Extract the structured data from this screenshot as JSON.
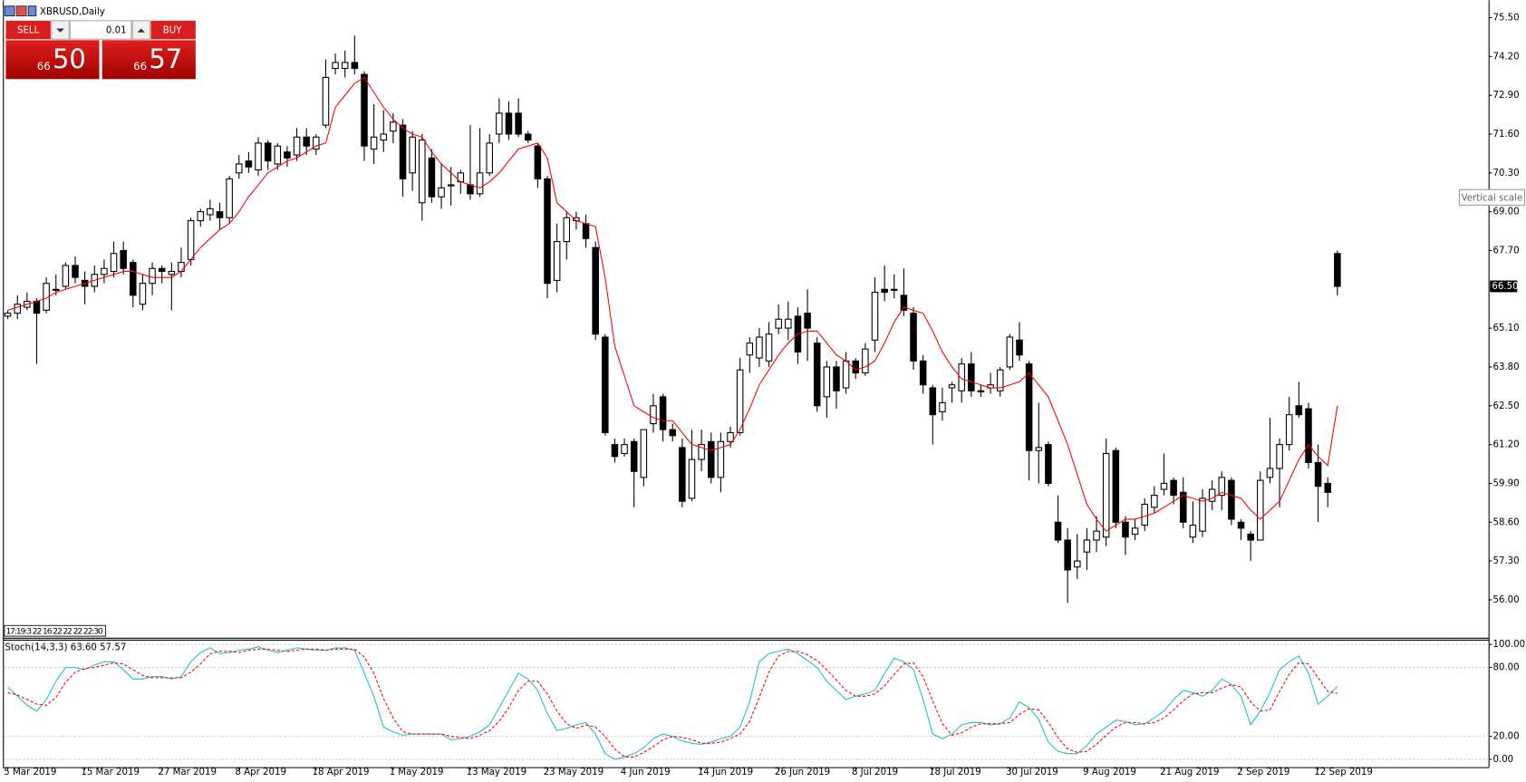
{
  "window": {
    "title": "XBRUSD,Daily",
    "trade_panel": {
      "sell": "SELL",
      "buy": "BUY",
      "volume": "0.01",
      "sell_price": {
        "prefix": "66",
        "main": "50"
      },
      "buy_price": {
        "prefix": "66",
        "main": "57"
      }
    },
    "tooltip": "Vertical scale",
    "time_strip": "17:19:3 22 16 22 22 22 22:30"
  },
  "chart_data": [
    {
      "type": "candlestick",
      "up_color": "#ffffff",
      "down_color": "#000000",
      "ylim": [
        54.73,
        75.92
      ],
      "yticks": [
        {
          "value": 75.5,
          "label": "75.50"
        },
        {
          "value": 74.2,
          "label": "74.20"
        },
        {
          "value": 72.9,
          "label": "72.90"
        },
        {
          "value": 71.6,
          "label": "71.60"
        },
        {
          "value": 70.3,
          "label": "70.30"
        },
        {
          "value": 69,
          "label": "69.00"
        },
        {
          "value": 67.7,
          "label": "67.70"
        },
        {
          "value": 65.1,
          "label": "65.10"
        },
        {
          "value": 63.8,
          "label": "63.80"
        },
        {
          "value": 62.5,
          "label": "62.50"
        },
        {
          "value": 61.2,
          "label": "61.20"
        },
        {
          "value": 59.9,
          "label": "59.90"
        },
        {
          "value": 58.6,
          "label": "58.60"
        },
        {
          "value": 57.3,
          "label": "57.30"
        },
        {
          "value": 56,
          "label": "56.00"
        }
      ],
      "last_price": {
        "value": 66.5,
        "label": "66.50"
      },
      "categories": [
        "5 Mar 2019",
        null,
        null,
        null,
        null,
        null,
        null,
        null,
        "15 Mar 2019",
        null,
        null,
        null,
        null,
        null,
        null,
        null,
        "27 Mar 2019",
        null,
        null,
        null,
        null,
        null,
        null,
        null,
        "8 Apr 2019",
        null,
        null,
        null,
        null,
        null,
        null,
        null,
        "18 Apr 2019",
        null,
        null,
        null,
        null,
        null,
        null,
        null,
        "1 May 2019",
        null,
        null,
        null,
        null,
        null,
        null,
        null,
        "13 May 2019",
        null,
        null,
        null,
        null,
        null,
        null,
        null,
        "23 May 2019",
        null,
        null,
        null,
        null,
        null,
        null,
        null,
        "4 Jun 2019",
        null,
        null,
        null,
        null,
        null,
        null,
        null,
        "14 Jun 2019",
        null,
        null,
        null,
        null,
        null,
        null,
        null,
        "26 Jun 2019",
        null,
        null,
        null,
        null,
        null,
        null,
        null,
        "8 Jul 2019",
        null,
        null,
        null,
        null,
        null,
        null,
        null,
        "18 Jul 2019",
        null,
        null,
        null,
        null,
        null,
        null,
        null,
        "30 Jul 2019",
        null,
        null,
        null,
        null,
        null,
        null,
        null,
        "9 Aug 2019",
        null,
        null,
        null,
        null,
        null,
        null,
        null,
        "21 Aug 2019",
        null,
        null,
        null,
        null,
        null,
        null,
        null,
        "2 Sep 2019",
        null,
        null,
        null,
        null,
        null,
        null,
        null,
        "12 Sep 2019",
        null,
        null
      ],
      "open": [
        65.5,
        65.6,
        65.8,
        66.0,
        65.7,
        66.4,
        66.5,
        67.2,
        66.7,
        66.5,
        66.9,
        67.0,
        67.7,
        67.3,
        65.9,
        66.6,
        67.1,
        66.9,
        67.0,
        67.4,
        68.7,
        68.9,
        69.0,
        68.8,
        70.3,
        70.7,
        70.4,
        71.3,
        70.6,
        71.0,
        70.9,
        71.5,
        71.1,
        71.9,
        73.8,
        73.8,
        74.0,
        73.6,
        71.1,
        71.4,
        71.7,
        71.9,
        70.3,
        69.3,
        70.8,
        69.5,
        69.9,
        70.0,
        69.9,
        69.6,
        70.3,
        71.6,
        72.3,
        72.3,
        71.6,
        71.2,
        70.1,
        66.7,
        68.0,
        68.7,
        68.6,
        67.8,
        64.8,
        61.2,
        60.9,
        61.3,
        60.1,
        61.9,
        62.8,
        61.7,
        61.1,
        59.4,
        60.7,
        61.3,
        60.1,
        61.3,
        61.6,
        64.2,
        64.1,
        64.0,
        65.1,
        65.1,
        65.5,
        65.6,
        64.6,
        62.8,
        63.8,
        63.1,
        64.0,
        63.6,
        64.7,
        66.4,
        66.4,
        66.2,
        65.6,
        64.0,
        63.1,
        62.3,
        63.1,
        63.0,
        63.9,
        63.0,
        63.1,
        63.0,
        63.8,
        64.7,
        63.9,
        61.0,
        61.2,
        58.6,
        58.0,
        57.1,
        57.6,
        58.0,
        58.1,
        61.0,
        58.6,
        58.2,
        58.5,
        59.1,
        59.7,
        60.0,
        59.6,
        58.1,
        58.3,
        59.3,
        59.5,
        60.0,
        58.6,
        58.2,
        58.0,
        60.1,
        60.4,
        61.2,
        62.5,
        62.4,
        60.6,
        59.9,
        67.6
      ],
      "high": [
        65.7,
        66.2,
        66.3,
        66.1,
        66.8,
        66.9,
        67.3,
        67.5,
        67.0,
        67.2,
        67.4,
        68.0,
        68.0,
        67.4,
        66.9,
        67.3,
        67.2,
        67.3,
        67.8,
        68.8,
        69.1,
        69.4,
        69.3,
        70.2,
        70.9,
        71.0,
        71.5,
        71.4,
        71.3,
        71.2,
        71.8,
        71.8,
        71.6,
        74.1,
        74.3,
        74.4,
        74.9,
        73.7,
        72.6,
        72.4,
        72.3,
        72.1,
        71.7,
        71.6,
        71.1,
        70.6,
        70.5,
        70.4,
        71.9,
        71.8,
        71.6,
        72.8,
        72.7,
        72.8,
        71.7,
        71.3,
        70.2,
        68.6,
        69.0,
        69.0,
        68.9,
        68.0,
        64.9,
        61.4,
        61.4,
        61.4,
        61.7,
        62.9,
        62.9,
        61.9,
        61.4,
        61.7,
        61.7,
        61.6,
        61.6,
        61.8,
        64.1,
        64.8,
        65.1,
        65.3,
        65.9,
        66.0,
        65.8,
        66.4,
        64.8,
        64.0,
        64.0,
        64.3,
        64.1,
        64.6,
        66.8,
        67.2,
        66.9,
        67.1,
        65.8,
        64.2,
        63.2,
        63.1,
        63.3,
        64.1,
        64.3,
        63.2,
        63.6,
        63.8,
        64.9,
        65.3,
        64.0,
        62.6,
        61.3,
        59.5,
        58.4,
        58.2,
        58.4,
        58.8,
        61.4,
        61.1,
        58.8,
        58.7,
        59.4,
        59.8,
        60.9,
        60.1,
        60.1,
        59.3,
        59.7,
        60.0,
        60.3,
        60.1,
        58.7,
        58.3,
        60.3,
        62.1,
        61.4,
        62.8,
        63.3,
        62.6,
        61.2,
        60.1,
        67.7
      ],
      "low": [
        65.4,
        65.4,
        65.7,
        63.9,
        65.6,
        66.2,
        66.4,
        66.6,
        65.9,
        66.3,
        66.6,
        66.8,
        66.9,
        65.8,
        65.7,
        66.2,
        66.6,
        65.7,
        66.8,
        67.2,
        68.5,
        68.7,
        68.4,
        68.6,
        70.1,
        70.3,
        70.2,
        70.4,
        70.4,
        70.5,
        70.7,
        70.9,
        70.9,
        71.8,
        73.6,
        73.5,
        73.6,
        70.7,
        70.6,
        71.0,
        71.3,
        69.5,
        69.7,
        68.7,
        69.3,
        69.1,
        69.2,
        69.6,
        69.4,
        69.5,
        70.2,
        71.3,
        71.4,
        71.5,
        71.3,
        69.8,
        66.1,
        66.3,
        67.4,
        68.4,
        67.8,
        64.7,
        61.5,
        60.6,
        60.8,
        59.1,
        59.8,
        61.6,
        61.3,
        61.3,
        59.1,
        59.3,
        60.3,
        59.9,
        59.6,
        61.1,
        61.5,
        63.6,
        63.8,
        63.8,
        64.9,
        64.7,
        63.9,
        64.0,
        62.3,
        62.1,
        62.4,
        62.9,
        63.4,
        63.5,
        64.3,
        66.0,
        66.1,
        65.5,
        63.7,
        62.9,
        61.2,
        62.0,
        62.6,
        62.6,
        62.8,
        62.8,
        62.9,
        62.8,
        63.7,
        64.0,
        60.0,
        59.9,
        59.8,
        57.9,
        55.9,
        56.7,
        57.0,
        57.6,
        57.8,
        58.4,
        57.5,
        58.0,
        58.3,
        58.9,
        59.5,
        59.2,
        58.4,
        57.9,
        58.1,
        59.0,
        59.0,
        58.5,
        58.0,
        57.3,
        58.0,
        59.9,
        59.1,
        61.0,
        62.1,
        60.4,
        58.6,
        59.1,
        66.2
      ],
      "close": [
        65.6,
        65.9,
        66.0,
        65.6,
        66.6,
        66.4,
        67.2,
        66.8,
        66.5,
        66.9,
        67.1,
        67.6,
        67.1,
        66.2,
        66.6,
        67.1,
        67.0,
        67.0,
        67.3,
        68.7,
        69.0,
        69.1,
        68.8,
        70.1,
        70.6,
        70.5,
        71.3,
        70.7,
        71.2,
        70.8,
        71.5,
        71.2,
        71.5,
        73.5,
        74.0,
        74.0,
        73.8,
        71.2,
        71.5,
        71.6,
        72.0,
        70.1,
        71.5,
        71.4,
        69.5,
        69.8,
        69.9,
        70.3,
        69.6,
        70.3,
        71.3,
        72.3,
        71.6,
        71.6,
        71.4,
        70.1,
        66.6,
        68.0,
        68.8,
        68.8,
        68.1,
        64.9,
        61.6,
        60.8,
        61.2,
        60.3,
        61.7,
        62.5,
        61.7,
        61.5,
        59.3,
        60.7,
        61.2,
        60.1,
        61.3,
        61.6,
        63.7,
        64.6,
        64.8,
        64.9,
        65.4,
        65.4,
        64.3,
        65.1,
        62.5,
        63.8,
        63.0,
        64.0,
        63.6,
        64.4,
        66.3,
        66.3,
        66.4,
        65.7,
        64.0,
        63.2,
        62.2,
        62.6,
        63.2,
        63.9,
        63.0,
        63.0,
        63.2,
        63.7,
        64.8,
        64.2,
        61.0,
        61.1,
        59.9,
        58.0,
        57.0,
        57.3,
        58.0,
        58.3,
        60.9,
        58.6,
        58.1,
        58.4,
        59.2,
        59.5,
        59.9,
        59.5,
        58.6,
        58.5,
        59.4,
        59.7,
        60.1,
        58.7,
        58.4,
        58.0,
        60.0,
        60.4,
        61.2,
        62.2,
        62.2,
        60.6,
        59.8,
        59.6,
        66.5
      ],
      "overlays": [
        {
          "color": "#ff0000",
          "values": [
            65.7,
            65.8,
            65.9,
            66.0,
            66.1,
            66.3,
            66.4,
            66.5,
            66.6,
            66.7,
            66.8,
            66.9,
            67.0,
            67.0,
            66.9,
            66.8,
            66.8,
            66.8,
            67.0,
            67.4,
            67.8,
            68.1,
            68.4,
            68.6,
            69.0,
            69.5,
            69.9,
            70.3,
            70.5,
            70.7,
            70.8,
            71.0,
            71.2,
            71.3,
            72.5,
            72.9,
            73.3,
            73.5,
            73.0,
            72.5,
            72.1,
            71.8,
            71.6,
            71.5,
            71.0,
            70.6,
            70.3,
            70.0,
            69.9,
            69.8,
            70.0,
            70.3,
            70.7,
            71.1,
            71.2,
            71.3,
            70.8,
            69.3,
            69.0,
            68.7,
            68.6,
            68.5,
            66.8,
            64.5,
            63.5,
            62.5,
            62.3,
            62.1,
            62.0,
            62.0,
            61.6,
            61.2,
            61.1,
            61.0,
            61.1,
            61.2,
            61.7,
            62.4,
            63.2,
            63.7,
            64.2,
            64.6,
            64.9,
            65.0,
            65.0,
            64.6,
            64.2,
            64.0,
            63.7,
            63.8,
            64.0,
            64.6,
            65.3,
            65.8,
            65.7,
            65.6,
            65.0,
            64.3,
            63.8,
            63.4,
            63.3,
            63.2,
            63.1,
            63.1,
            63.2,
            63.3,
            63.6,
            63.2,
            62.8,
            62.0,
            61.2,
            60.2,
            59.2,
            58.7,
            58.3,
            58.5,
            58.7,
            58.7,
            58.8,
            58.9,
            59.1,
            59.3,
            59.5,
            59.4,
            59.3,
            59.4,
            59.6,
            59.5,
            59.4,
            59.0,
            58.7,
            59.0,
            59.3,
            60.0,
            60.7,
            61.2,
            60.8,
            60.5,
            62.5
          ]
        }
      ]
    },
    {
      "type": "line",
      "label": "Stoch(14,3,3)",
      "ylim": [
        -6.8,
        104.2
      ],
      "yticks": [
        {
          "value": 100,
          "label": "100.00"
        },
        {
          "value": 80,
          "label": "80.00"
        },
        {
          "value": 20,
          "label": "20.00"
        },
        {
          "value": 0,
          "label": "0.00"
        }
      ],
      "readout": [
        {
          "value": 63.6,
          "label": "63.60"
        },
        {
          "value": 57.57,
          "label": "57.57"
        }
      ],
      "series": [
        {
          "color": "#20c0c8",
          "dashed": false,
          "values": [
            63,
            55,
            47,
            42,
            52,
            68,
            80,
            80,
            78,
            82,
            85,
            85,
            78,
            70,
            70,
            72,
            72,
            70,
            72,
            85,
            93,
            97,
            92,
            93,
            95,
            96,
            98,
            95,
            93,
            95,
            97,
            96,
            95,
            95,
            97,
            97,
            95,
            75,
            55,
            28,
            24,
            21,
            22,
            22,
            22,
            22,
            17,
            18,
            20,
            24,
            30,
            45,
            60,
            75,
            70,
            60,
            40,
            25,
            27,
            30,
            32,
            22,
            5,
            0,
            2,
            5,
            10,
            18,
            22,
            20,
            16,
            14,
            13,
            15,
            18,
            20,
            28,
            50,
            85,
            92,
            94,
            96,
            92,
            86,
            80,
            68,
            60,
            52,
            55,
            57,
            60,
            75,
            88,
            85,
            78,
            52,
            22,
            18,
            22,
            30,
            32,
            32,
            30,
            31,
            36,
            50,
            45,
            35,
            15,
            7,
            5,
            5,
            12,
            22,
            28,
            34,
            33,
            30,
            31,
            36,
            42,
            52,
            60,
            58,
            55,
            60,
            70,
            65,
            55,
            30,
            42,
            58,
            78,
            85,
            90,
            75,
            48,
            55,
            63.6
          ]
        },
        {
          "color": "#ff0000",
          "dashed": true,
          "values": [
            58,
            56,
            52,
            48,
            47,
            54,
            67,
            76,
            79,
            80,
            82,
            84,
            83,
            78,
            73,
            71,
            71,
            71,
            71,
            76,
            83,
            92,
            94,
            94,
            93,
            95,
            96,
            96,
            95,
            94,
            95,
            96,
            96,
            95,
            96,
            96,
            96,
            89,
            75,
            53,
            36,
            24,
            22,
            22,
            22,
            22,
            20,
            19,
            18,
            21,
            25,
            33,
            45,
            60,
            68,
            68,
            57,
            42,
            31,
            27,
            30,
            28,
            20,
            9,
            2,
            2,
            6,
            11,
            17,
            20,
            19,
            17,
            14,
            14,
            15,
            18,
            22,
            33,
            54,
            76,
            90,
            94,
            94,
            91,
            86,
            78,
            69,
            60,
            55,
            55,
            57,
            64,
            74,
            83,
            84,
            72,
            51,
            31,
            21,
            23,
            28,
            31,
            31,
            31,
            32,
            39,
            44,
            43,
            32,
            19,
            9,
            6,
            7,
            13,
            21,
            28,
            32,
            32,
            31,
            32,
            36,
            43,
            51,
            57,
            58,
            58,
            62,
            65,
            63,
            50,
            42,
            43,
            59,
            74,
            84,
            83,
            71,
            59,
            57.57
          ]
        }
      ]
    }
  ]
}
